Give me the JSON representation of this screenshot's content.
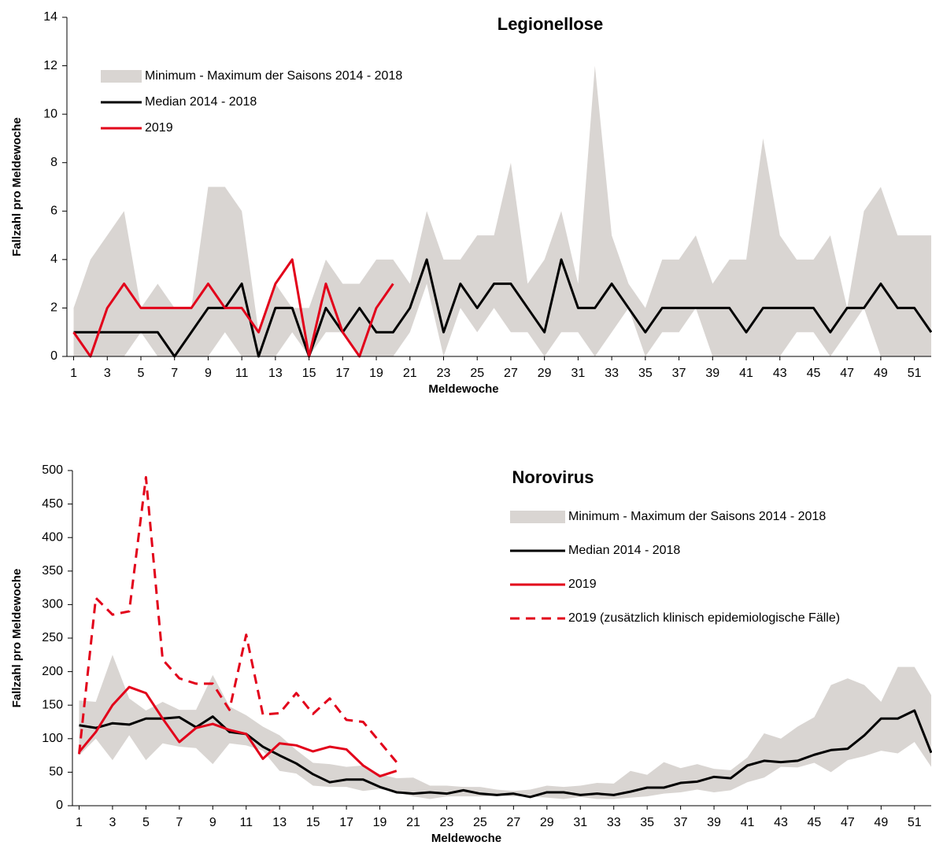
{
  "chart_data": [
    {
      "type": "line",
      "title": "Legionellose",
      "xlabel": "Meldewoche",
      "ylabel": "Fallzahl pro Meldewoche",
      "legend": "upper left",
      "x": [
        1,
        2,
        3,
        4,
        5,
        6,
        7,
        8,
        9,
        10,
        11,
        12,
        13,
        14,
        15,
        16,
        17,
        18,
        19,
        20,
        21,
        22,
        23,
        24,
        25,
        26,
        27,
        28,
        29,
        30,
        31,
        32,
        33,
        34,
        35,
        36,
        37,
        38,
        39,
        40,
        41,
        42,
        43,
        44,
        45,
        46,
        47,
        48,
        49,
        50,
        51,
        52
      ],
      "xlim": [
        0.6,
        52
      ],
      "xticks": [
        1,
        3,
        5,
        7,
        9,
        11,
        13,
        15,
        17,
        19,
        21,
        23,
        25,
        27,
        29,
        31,
        33,
        35,
        37,
        39,
        41,
        43,
        45,
        47,
        49,
        51
      ],
      "ylim": [
        0,
        14
      ],
      "yticks": [
        0,
        2,
        4,
        6,
        8,
        10,
        12,
        14
      ],
      "series": [
        {
          "name": "Minimum - Maximum der Saisons 2014 - 2018",
          "color": "#d9d5d2",
          "kind": "band",
          "values": [
            2,
            4,
            5,
            6,
            2,
            3,
            2,
            2,
            7,
            7,
            6,
            1,
            3,
            2,
            2,
            4,
            3,
            3,
            4,
            4,
            3,
            6,
            4,
            4,
            5,
            5,
            8,
            3,
            4,
            6,
            3,
            12,
            5,
            3,
            2,
            4,
            4,
            5,
            3,
            4,
            4,
            9,
            5,
            4,
            4,
            5,
            2,
            6,
            7,
            5,
            5,
            5
          ],
          "lower": [
            0,
            0,
            0,
            0,
            1,
            0,
            0,
            0,
            0,
            1,
            0,
            0,
            0,
            1,
            0,
            1,
            1,
            0,
            0,
            0,
            1,
            3,
            0,
            2,
            1,
            2,
            1,
            1,
            0,
            1,
            1,
            0,
            1,
            2,
            0,
            1,
            1,
            2,
            0,
            0,
            0,
            0,
            0,
            1,
            1,
            0,
            1,
            2,
            0,
            0,
            0,
            0
          ]
        },
        {
          "name": "Median 2014 - 2018",
          "color": "#000000",
          "values": [
            1,
            1,
            1,
            1,
            1,
            1,
            0,
            1,
            2,
            2,
            3,
            0,
            2,
            2,
            0,
            2,
            1,
            2,
            1,
            1,
            2,
            4,
            1,
            3,
            2,
            3,
            3,
            2,
            1,
            4,
            2,
            2,
            3,
            2,
            1,
            2,
            2,
            2,
            2,
            2,
            1,
            2,
            2,
            2,
            2,
            1,
            2,
            2,
            3,
            2,
            2,
            1
          ]
        },
        {
          "name": "2019",
          "color": "#e2001a",
          "values": [
            1,
            0,
            2,
            3,
            2,
            2,
            2,
            2,
            3,
            2,
            2,
            1,
            3,
            4,
            0,
            3,
            1,
            0,
            2,
            3,
            null,
            null,
            null,
            null,
            null,
            null,
            null,
            null,
            null,
            null,
            null,
            null,
            null,
            null,
            null,
            null,
            null,
            null,
            null,
            null,
            null,
            null,
            null,
            null,
            null,
            null,
            null,
            null,
            null,
            null,
            null,
            null
          ]
        }
      ]
    },
    {
      "type": "line",
      "title": "Norovirus",
      "xlabel": "Meldewoche",
      "ylabel": "Fallzahl pro Meldewoche",
      "legend": "upper right",
      "x": [
        1,
        2,
        3,
        4,
        5,
        6,
        7,
        8,
        9,
        10,
        11,
        12,
        13,
        14,
        15,
        16,
        17,
        18,
        19,
        20,
        21,
        22,
        23,
        24,
        25,
        26,
        27,
        28,
        29,
        30,
        31,
        32,
        33,
        34,
        35,
        36,
        37,
        38,
        39,
        40,
        41,
        42,
        43,
        44,
        45,
        46,
        47,
        48,
        49,
        50,
        51,
        52
      ],
      "xlim": [
        0.6,
        52
      ],
      "xticks": [
        1,
        3,
        5,
        7,
        9,
        11,
        13,
        15,
        17,
        19,
        21,
        23,
        25,
        27,
        29,
        31,
        33,
        35,
        37,
        39,
        41,
        43,
        45,
        47,
        49,
        51
      ],
      "ylim": [
        0,
        500
      ],
      "yticks": [
        0,
        50,
        100,
        150,
        200,
        250,
        300,
        350,
        400,
        450,
        500
      ],
      "series": [
        {
          "name": "Minimum - Maximum der Saisons 2014 - 2018",
          "color": "#d9d5d2",
          "kind": "band",
          "values": [
            157,
            155,
            225,
            160,
            142,
            155,
            143,
            143,
            195,
            148,
            135,
            118,
            105,
            83,
            64,
            62,
            58,
            60,
            47,
            41,
            42,
            30,
            30,
            28,
            28,
            24,
            22,
            24,
            30,
            28,
            30,
            34,
            33,
            52,
            46,
            65,
            56,
            62,
            55,
            53,
            72,
            108,
            100,
            118,
            132,
            180,
            190,
            180,
            155,
            207,
            207,
            165
          ],
          "lower": [
            75,
            100,
            68,
            105,
            68,
            93,
            88,
            86,
            62,
            93,
            90,
            82,
            52,
            48,
            30,
            28,
            28,
            22,
            25,
            20,
            14,
            10,
            14,
            14,
            14,
            15,
            14,
            14,
            12,
            10,
            13,
            10,
            10,
            12,
            14,
            18,
            20,
            24,
            20,
            23,
            35,
            42,
            58,
            57,
            64,
            50,
            68,
            74,
            82,
            78,
            95,
            58
          ]
        },
        {
          "name": "Median 2014 - 2018",
          "color": "#000000",
          "values": [
            120,
            116,
            123,
            121,
            130,
            130,
            132,
            117,
            133,
            110,
            107,
            88,
            75,
            63,
            47,
            35,
            39,
            39,
            28,
            20,
            18,
            20,
            18,
            23,
            18,
            16,
            18,
            13,
            20,
            20,
            16,
            18,
            16,
            21,
            27,
            27,
            34,
            36,
            43,
            41,
            60,
            67,
            65,
            67,
            76,
            83,
            85,
            105,
            130,
            130,
            142,
            79
          ]
        },
        {
          "name": "2019",
          "color": "#e2001a",
          "values": [
            80,
            110,
            150,
            177,
            168,
            130,
            95,
            116,
            122,
            113,
            107,
            70,
            93,
            90,
            81,
            88,
            84,
            60,
            44,
            52,
            null,
            null,
            null,
            null,
            null,
            null,
            null,
            null,
            null,
            null,
            null,
            null,
            null,
            null,
            null,
            null,
            null,
            null,
            null,
            null,
            null,
            null,
            null,
            null,
            null,
            null,
            null,
            null,
            null,
            null,
            null,
            null
          ]
        },
        {
          "name": "2019 (zusätzlich klinisch epidemiologische Fälle)",
          "color": "#e2001a",
          "dashed": true,
          "values": [
            77,
            310,
            285,
            290,
            490,
            218,
            190,
            182,
            182,
            143,
            255,
            136,
            138,
            168,
            137,
            160,
            128,
            125,
            95,
            65,
            null,
            null,
            null,
            null,
            null,
            null,
            null,
            null,
            null,
            null,
            null,
            null,
            null,
            null,
            null,
            null,
            null,
            null,
            null,
            null,
            null,
            null,
            null,
            null,
            null,
            null,
            null,
            null,
            null,
            null,
            null,
            null
          ]
        }
      ]
    }
  ]
}
